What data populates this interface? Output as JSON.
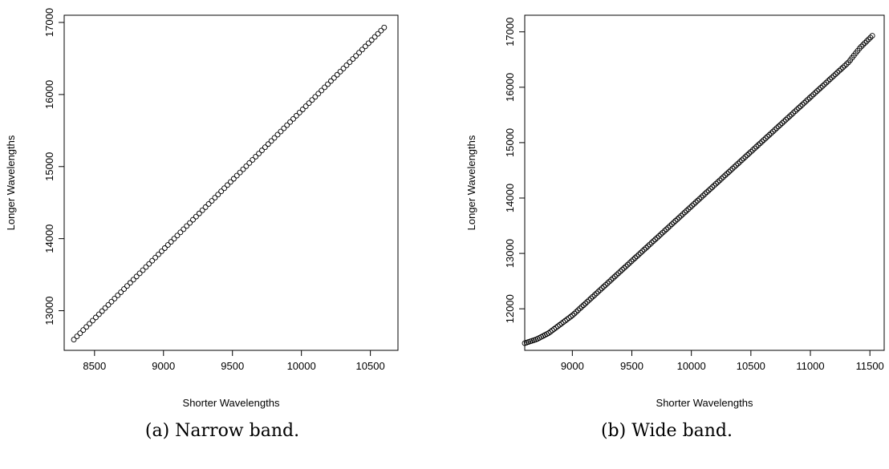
{
  "chart_data": [
    {
      "id": "a",
      "type": "scatter",
      "title": "",
      "caption": "(a) Narrow band.",
      "xlabel": "Shorter Wavelengths",
      "ylabel": "Longer Wavelengths",
      "xlim": [
        8280,
        10700
      ],
      "ylim": [
        12450,
        17100
      ],
      "xticks": [
        8500,
        9000,
        9500,
        10000,
        10500
      ],
      "yticks": [
        13000,
        14000,
        15000,
        16000,
        17000
      ],
      "grid": false,
      "series": [
        {
          "x_start": 8350,
          "x_end": 10600,
          "count": 100,
          "segments": [
            [
              8350,
              12600
            ],
            [
              10600,
              16930
            ]
          ]
        }
      ]
    },
    {
      "id": "b",
      "type": "scatter",
      "title": "",
      "caption": "(b) Wide band.",
      "xlabel": "Shorter Wavelengths",
      "ylabel": "Longer Wavelengths",
      "xlim": [
        8600,
        11620
      ],
      "ylim": [
        11250,
        17300
      ],
      "xticks": [
        9000,
        9500,
        10000,
        10500,
        11000,
        11500
      ],
      "yticks": [
        12000,
        13000,
        14000,
        15000,
        16000,
        17000
      ],
      "grid": false,
      "series": [
        {
          "x_start": 8600,
          "x_end": 11520,
          "count": 190,
          "segments": [
            [
              8600,
              11380
            ],
            [
              8700,
              11450
            ],
            [
              8800,
              11560
            ],
            [
              9000,
              11880
            ],
            [
              11320,
              16450
            ],
            [
              11420,
              16720
            ],
            [
              11520,
              16930
            ]
          ]
        }
      ]
    }
  ]
}
